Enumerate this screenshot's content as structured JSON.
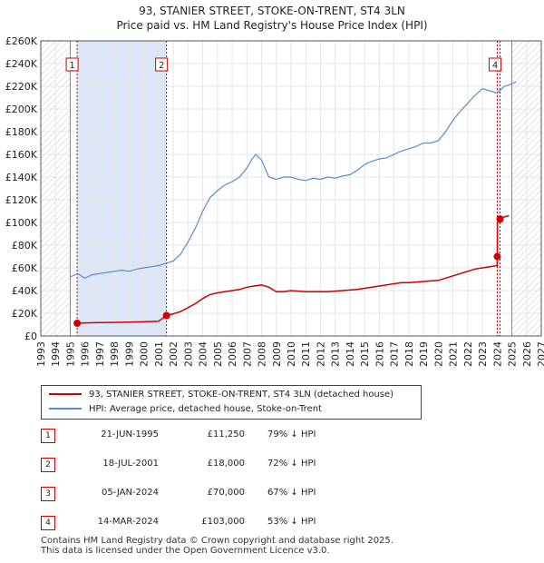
{
  "title_line1": "93, STANIER STREET, STOKE-ON-TRENT, ST4 3LN",
  "title_line2": "Price paid vs. HM Land Registry's House Price Index (HPI)",
  "legend": {
    "property": "93, STANIER STREET, STOKE-ON-TRENT, ST4 3LN (detached house)",
    "hpi": "HPI: Average price, detached house, Stoke-on-Trent"
  },
  "sales": [
    {
      "num": "1",
      "date": "21-JUN-1995",
      "price": "£11,250",
      "hpi": "79% ↓ HPI"
    },
    {
      "num": "2",
      "date": "18-JUL-2001",
      "price": "£18,000",
      "hpi": "72% ↓ HPI"
    },
    {
      "num": "3",
      "date": "05-JAN-2024",
      "price": "£70,000",
      "hpi": "67% ↓ HPI"
    },
    {
      "num": "4",
      "date": "14-MAR-2024",
      "price": "£103,000",
      "hpi": "53% ↓ HPI"
    }
  ],
  "footer": {
    "line1": "Contains HM Land Registry data © Crown copyright and database right 2025.",
    "line2": "This data is licensed under the Open Government Licence v3.0."
  },
  "colors": {
    "property": "#cc0000",
    "hpi": "#5b8ccc",
    "shade": "#dde6f7",
    "hatch": "#c8c8c8"
  },
  "chart_data": {
    "type": "line",
    "title": "93, STANIER STREET, STOKE-ON-TRENT, ST4 3LN — Price paid vs. HM Land Registry's House Price Index (HPI)",
    "xlim": [
      1993,
      2027
    ],
    "ylim": [
      0,
      260000
    ],
    "y_ticks": [
      0,
      20000,
      40000,
      60000,
      80000,
      100000,
      120000,
      140000,
      160000,
      180000,
      200000,
      220000,
      240000,
      260000
    ],
    "y_tick_labels": [
      "£0",
      "£20K",
      "£40K",
      "£60K",
      "£80K",
      "£100K",
      "£120K",
      "£140K",
      "£160K",
      "£180K",
      "£200K",
      "£220K",
      "£240K",
      "£260K"
    ],
    "x_ticks": [
      "1993",
      "1994",
      "1995",
      "1996",
      "1997",
      "1998",
      "1999",
      "2000",
      "2001",
      "2002",
      "2003",
      "2004",
      "2005",
      "2006",
      "2007",
      "2008",
      "2009",
      "2010",
      "2011",
      "2012",
      "2013",
      "2014",
      "2015",
      "2016",
      "2017",
      "2018",
      "2019",
      "2020",
      "2021",
      "2022",
      "2023",
      "2024",
      "2025",
      "2026",
      "2027"
    ],
    "shaded_ranges": [
      [
        1995.47,
        2001.54
      ],
      [
        2024.01,
        2024.2
      ]
    ],
    "hatched_ranges": [
      [
        1993,
        1995.0
      ],
      [
        2025.0,
        2027
      ]
    ],
    "series": [
      {
        "name": "HPI: Average price, detached house, Stoke-on-Trent",
        "x": [
          1995.0,
          1995.5,
          1996.0,
          1996.5,
          1997.0,
          1997.5,
          1998.0,
          1998.5,
          1999.0,
          1999.5,
          2000.0,
          2000.5,
          2001.0,
          2001.5,
          2002.0,
          2002.5,
          2003.0,
          2003.5,
          2004.0,
          2004.5,
          2005.0,
          2005.5,
          2006.0,
          2006.5,
          2007.0,
          2007.3,
          2007.6,
          2008.0,
          2008.5,
          2009.0,
          2009.5,
          2010.0,
          2010.5,
          2011.0,
          2011.5,
          2012.0,
          2012.5,
          2013.0,
          2013.5,
          2014.0,
          2014.5,
          2015.0,
          2015.5,
          2016.0,
          2016.5,
          2017.0,
          2017.5,
          2018.0,
          2018.5,
          2019.0,
          2019.5,
          2020.0,
          2020.5,
          2021.0,
          2021.5,
          2022.0,
          2022.5,
          2023.0,
          2023.5,
          2024.0,
          2024.5,
          2025.0,
          2025.3
        ],
        "values": [
          52000,
          55000,
          51000,
          54000,
          55000,
          56000,
          57000,
          58000,
          57000,
          59000,
          60000,
          61000,
          62000,
          64000,
          66000,
          72000,
          83000,
          95000,
          110000,
          122000,
          128000,
          133000,
          136000,
          140000,
          148000,
          155000,
          160000,
          155000,
          140000,
          138000,
          140000,
          140000,
          138000,
          137000,
          139000,
          138000,
          140000,
          139000,
          141000,
          142000,
          146000,
          151000,
          154000,
          156000,
          157000,
          160000,
          163000,
          165000,
          167000,
          170000,
          170000,
          172000,
          180000,
          190000,
          198000,
          205000,
          212000,
          218000,
          216000,
          214000,
          220000,
          222000,
          224000
        ]
      },
      {
        "name": "93, STANIER STREET, STOKE-ON-TRENT, ST4 3LN (detached house)",
        "x": [
          1995.47,
          1996.0,
          1997.0,
          1998.0,
          1999.0,
          2000.0,
          2001.0,
          2001.54,
          2002.0,
          2002.5,
          2003.0,
          2003.5,
          2004.0,
          2004.5,
          2005.0,
          2005.5,
          2006.0,
          2006.5,
          2007.0,
          2007.5,
          2008.0,
          2008.5,
          2009.0,
          2009.5,
          2010.0,
          2010.5,
          2011.0,
          2011.5,
          2012.0,
          2012.5,
          2013.0,
          2013.5,
          2014.0,
          2014.5,
          2015.0,
          2015.5,
          2016.0,
          2016.5,
          2017.0,
          2017.5,
          2018.0,
          2018.5,
          2019.0,
          2019.5,
          2020.0,
          2020.5,
          2021.0,
          2021.5,
          2022.0,
          2022.5,
          2023.0,
          2023.5,
          2024.0,
          2024.01,
          2024.02,
          2024.2,
          2024.5,
          2024.8
        ],
        "values": [
          11250,
          11500,
          11800,
          12000,
          12200,
          12500,
          13000,
          18000,
          19500,
          21500,
          25000,
          28500,
          33000,
          36500,
          38000,
          39000,
          40000,
          41000,
          43000,
          44000,
          45000,
          43000,
          39000,
          39000,
          40000,
          39500,
          39000,
          39000,
          39000,
          39000,
          39500,
          40000,
          40500,
          41000,
          42000,
          43000,
          44000,
          45000,
          46000,
          47000,
          47000,
          47500,
          48000,
          48500,
          49000,
          51000,
          53000,
          55000,
          57000,
          59000,
          60000,
          61000,
          62000,
          70000,
          100000,
          103000,
          105000,
          106000
        ]
      }
    ],
    "markers": [
      {
        "label": "1",
        "x": 1995.47,
        "value": 11250
      },
      {
        "label": "2",
        "x": 2001.54,
        "value": 18000
      },
      {
        "label": "3",
        "x": 2024.01,
        "value": 70000
      },
      {
        "label": "4",
        "x": 2024.2,
        "value": 103000
      }
    ]
  }
}
